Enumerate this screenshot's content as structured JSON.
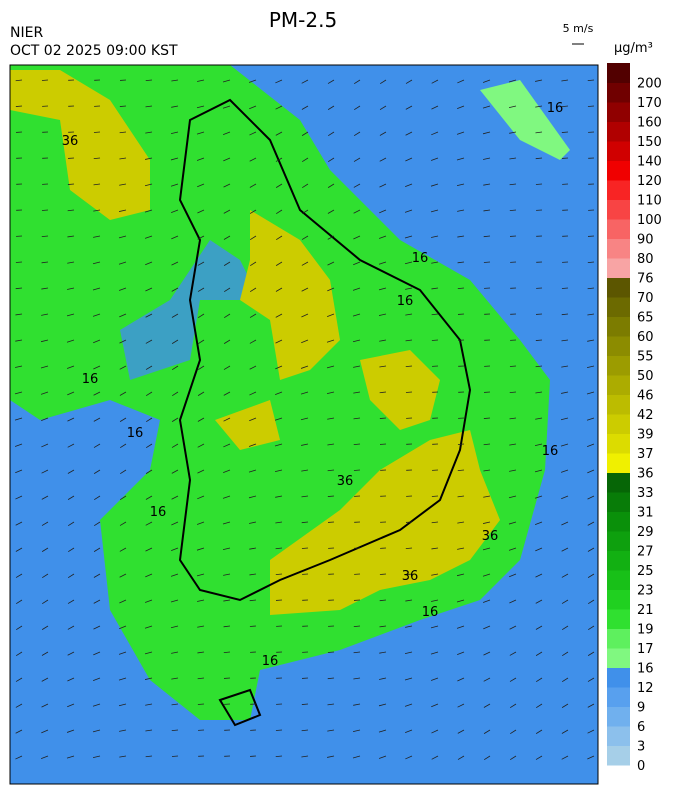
{
  "header": {
    "title": "PM-2.5",
    "source": "NIER",
    "timestamp": "OCT 02 2025 09:00 KST",
    "wind_scale": "5 m/s",
    "unit": "µg/m³"
  },
  "colorbar": {
    "levels": [
      {
        "value": 0,
        "color": "#a6cfe8"
      },
      {
        "value": 3,
        "color": "#8cc0ec"
      },
      {
        "value": 6,
        "color": "#70b0ee"
      },
      {
        "value": 9,
        "color": "#58a0ee"
      },
      {
        "value": 12,
        "color": "#4090ea"
      },
      {
        "value": 16,
        "color": "#80f880"
      },
      {
        "value": 17,
        "color": "#5ef05e"
      },
      {
        "value": 19,
        "color": "#30e030"
      },
      {
        "value": 21,
        "color": "#20d020"
      },
      {
        "value": 23,
        "color": "#18c018"
      },
      {
        "value": 25,
        "color": "#12b012"
      },
      {
        "value": 27,
        "color": "#0ea00e"
      },
      {
        "value": 29,
        "color": "#0a900a"
      },
      {
        "value": 31,
        "color": "#087c08"
      },
      {
        "value": 33,
        "color": "#066606"
      },
      {
        "value": 36,
        "color": "#f0f000"
      },
      {
        "value": 37,
        "color": "#dcdc00"
      },
      {
        "value": 39,
        "color": "#cccc00"
      },
      {
        "value": 42,
        "color": "#bcbc00"
      },
      {
        "value": 46,
        "color": "#acac00"
      },
      {
        "value": 50,
        "color": "#9c9c00"
      },
      {
        "value": 55,
        "color": "#8c8c00"
      },
      {
        "value": 60,
        "color": "#7c7c00"
      },
      {
        "value": 65,
        "color": "#6c6a00"
      },
      {
        "value": 70,
        "color": "#5c5600"
      },
      {
        "value": 76,
        "color": "#f8a4a4"
      },
      {
        "value": 80,
        "color": "#f88484"
      },
      {
        "value": 90,
        "color": "#f86464"
      },
      {
        "value": 100,
        "color": "#f84444"
      },
      {
        "value": 110,
        "color": "#f82424"
      },
      {
        "value": 120,
        "color": "#f00000"
      },
      {
        "value": 140,
        "color": "#d00000"
      },
      {
        "value": 150,
        "color": "#b00000"
      },
      {
        "value": 160,
        "color": "#900000"
      },
      {
        "value": 170,
        "color": "#700000"
      },
      {
        "value": 200,
        "color": "#520000"
      }
    ]
  },
  "map": {
    "contour_labels": [
      "36",
      "16",
      "16",
      "16",
      "16",
      "16",
      "16",
      "16",
      "36",
      "36",
      "36",
      "16",
      "16"
    ]
  }
}
